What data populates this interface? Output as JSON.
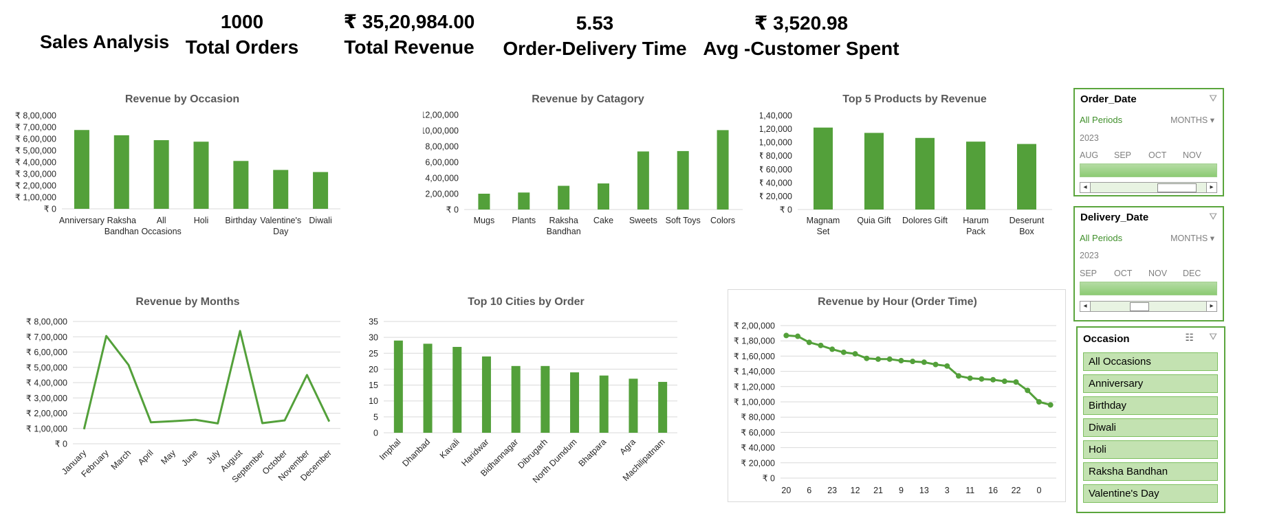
{
  "header": {
    "title": "Sales Analysis",
    "kpis": [
      {
        "value": "1000",
        "label": "Total Orders"
      },
      {
        "value": "₹ 35,20,984.00",
        "label": "Total Revenue"
      },
      {
        "value": "5.53",
        "label": "Order-Delivery Time"
      },
      {
        "value": "₹ 3,520.98",
        "label": "Avg -Customer Spent"
      }
    ]
  },
  "colors": {
    "accent": "#5aa53c",
    "bar": "#53a03a",
    "grid": "#d9d9d9"
  },
  "chart_data": [
    {
      "id": "occasion",
      "type": "bar",
      "title": "Revenue by Occasion",
      "categories": [
        [
          "Anniversary"
        ],
        [
          "Raksha",
          "Bandhan"
        ],
        [
          "All",
          "Occasions"
        ],
        [
          "Holi"
        ],
        [
          "Birthday"
        ],
        [
          "Valentine's",
          "Day"
        ],
        [
          "Diwali"
        ]
      ],
      "values": [
        675000,
        630000,
        588000,
        575000,
        410000,
        333000,
        315000
      ],
      "ylim": [
        0,
        800000
      ],
      "yticks": [
        "₹ 0",
        "₹ 1,00,000",
        "₹ 2,00,000",
        "₹ 3,00,000",
        "₹ 4,00,000",
        "₹ 5,00,000",
        "₹ 6,00,000",
        "₹ 7,00,000",
        "₹ 8,00,000"
      ],
      "grid": false
    },
    {
      "id": "category",
      "type": "bar",
      "title": "Revenue by Catagory",
      "categories": [
        [
          "Mugs"
        ],
        [
          "Plants"
        ],
        [
          "Raksha",
          "Bandhan"
        ],
        [
          "Cake"
        ],
        [
          "Sweets"
        ],
        [
          "Soft Toys"
        ],
        [
          "Colors"
        ]
      ],
      "values": [
        200000,
        215000,
        300000,
        330000,
        735000,
        740000,
        1005000
      ],
      "ylim": [
        0,
        1200000
      ],
      "yticks": [
        "₹ 0",
        "₹ 2,00,000",
        "₹ 4,00,000",
        "₹ 6,00,000",
        "₹ 8,00,000",
        "₹ 10,00,000",
        "₹ 12,00,000"
      ],
      "grid": false
    },
    {
      "id": "products",
      "type": "bar",
      "title": "Top 5 Products by Revenue",
      "categories": [
        [
          "Magnam",
          "Set"
        ],
        [
          "Quia Gift"
        ],
        [
          "Dolores Gift"
        ],
        [
          "Harum",
          "Pack"
        ],
        [
          "Deserunt",
          "Box"
        ]
      ],
      "values": [
        121900,
        114000,
        106500,
        101000,
        97500
      ],
      "ylim": [
        0,
        140000
      ],
      "yticks": [
        "₹ 0",
        "₹ 20,000",
        "₹ 40,000",
        "₹ 60,000",
        "₹ 80,000",
        "₹ 1,00,000",
        "₹ 1,20,000",
        "₹ 1,40,000"
      ],
      "grid": false
    },
    {
      "id": "months",
      "type": "line",
      "title": "Revenue by Months",
      "categories": [
        "January",
        "February",
        "March",
        "April",
        "May",
        "June",
        "July",
        "August",
        "September",
        "October",
        "November",
        "December"
      ],
      "values": [
        95000,
        705000,
        515000,
        140000,
        148000,
        157000,
        133000,
        738000,
        135000,
        153000,
        450000,
        145000
      ],
      "ylim": [
        0,
        800000
      ],
      "yticks": [
        "₹ 0",
        "₹ 1,00,000",
        "₹ 2,00,000",
        "₹ 3,00,000",
        "₹ 4,00,000",
        "₹ 5,00,000",
        "₹ 6,00,000",
        "₹ 7,00,000",
        "₹ 8,00,000"
      ],
      "grid": true
    },
    {
      "id": "cities",
      "type": "bar",
      "title": "Top 10 Cities by Order",
      "categories": [
        "Imphal",
        "Dhanbad",
        "Kavali",
        "Haridwar",
        "Bidhannagar",
        "Dibrugarh",
        "North Dumdum",
        "Bhatpara",
        "Agra",
        "Machilipatnam"
      ],
      "values": [
        29,
        28,
        27,
        24,
        21,
        21,
        19,
        18,
        17,
        16
      ],
      "ylim": [
        0,
        35
      ],
      "yticks": [
        "0",
        "5",
        "10",
        "15",
        "20",
        "25",
        "30",
        "35"
      ],
      "grid": true
    },
    {
      "id": "hour",
      "type": "line",
      "title": "Revenue by Hour (Order Time)",
      "categories": [
        "20",
        "",
        "6",
        "",
        "23",
        "",
        "12",
        "",
        "21",
        "",
        "9",
        "",
        "13",
        "",
        "3",
        "",
        "11",
        "",
        "16",
        "",
        "22",
        "",
        "0",
        ""
      ],
      "values": [
        187000,
        186000,
        178000,
        174000,
        169000,
        165000,
        163000,
        157000,
        156000,
        156000,
        154000,
        153000,
        152000,
        149000,
        147000,
        134000,
        131000,
        130000,
        129000,
        127000,
        126000,
        115000,
        100000,
        96000
      ],
      "ylim": [
        0,
        200000
      ],
      "yticks": [
        "₹ 0",
        "₹ 20,000",
        "₹ 40,000",
        "₹ 60,000",
        "₹ 80,000",
        "₹ 1,00,000",
        "₹ 1,20,000",
        "₹ 1,40,000",
        "₹ 1,60,000",
        "₹ 1,80,000",
        "₹ 2,00,000"
      ],
      "grid": true
    }
  ],
  "slicers": {
    "order_date": {
      "title": "Order_Date",
      "periods": "All Periods",
      "unit": "MONTHS",
      "year": "2023",
      "months": [
        "AUG",
        "SEP",
        "OCT",
        "NOV"
      ]
    },
    "delivery_date": {
      "title": "Delivery_Date",
      "periods": "All Periods",
      "unit": "MONTHS",
      "year": "2023",
      "months": [
        "SEP",
        "OCT",
        "NOV",
        "DEC"
      ]
    },
    "occasion": {
      "title": "Occasion",
      "items": [
        "All Occasions",
        "Anniversary",
        "Birthday",
        "Diwali",
        "Holi",
        "Raksha Bandhan",
        "Valentine's Day"
      ]
    }
  }
}
